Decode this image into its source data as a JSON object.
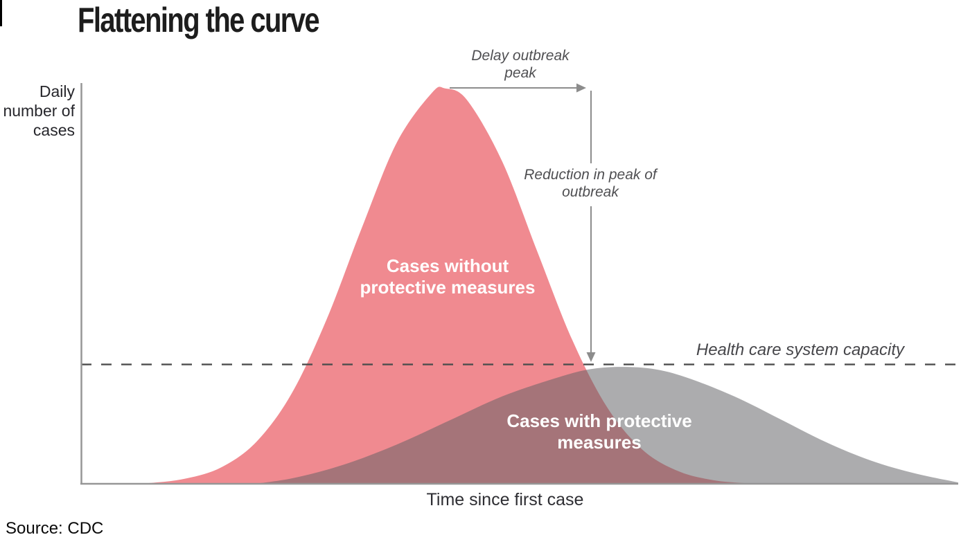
{
  "title": "Flattening the curve",
  "source": "Source: CDC",
  "axes": {
    "y_label": "Daily\nnumber of\ncases",
    "x_label": "Time since first case"
  },
  "annotations": {
    "delay": "Delay outbreak\npeak",
    "reduction": "Reduction in peak of\noutbreak",
    "capacity": "Health care system capacity"
  },
  "curve_labels": {
    "without": "Cases without\nprotective measures",
    "with": "Cases with protective\nmeasures"
  },
  "colors": {
    "pink_area": "#f08a90",
    "gray_area_overlay": "rgba(95,95,99,0.52)",
    "overlap_rendered": "#a07377",
    "dashed_line": "#4d4d4d",
    "axis_line": "#969696",
    "arrow": "#8c8c8c",
    "title_text": "#1d1d1d",
    "annotation_text": "#4f4f52",
    "area_label_text": "#ffffff"
  },
  "chart_data": {
    "type": "area",
    "title": "Flattening the curve",
    "xlabel": "Time since first case",
    "ylabel": "Daily number of cases",
    "grid": false,
    "axis_ticks": "none (conceptual chart, values in % of axis range)",
    "capacity_line": {
      "label": "Health care system capacity",
      "y_pct": 30,
      "style": "dashed"
    },
    "series": [
      {
        "name": "Cases without protective measures",
        "color": "#f08a90",
        "peak": {
          "x_pct": 41.5,
          "y_pct": 99
        },
        "points": [
          [
            0,
            0
          ],
          [
            4,
            0.1
          ],
          [
            8,
            0.4
          ],
          [
            12,
            1.5
          ],
          [
            16,
            4.3
          ],
          [
            20,
            10.7
          ],
          [
            24,
            22.7
          ],
          [
            28,
            41.3
          ],
          [
            32,
            64.1
          ],
          [
            36,
            85.5
          ],
          [
            40,
            97.9
          ],
          [
            41.5,
            99
          ],
          [
            44,
            96.1
          ],
          [
            48,
            80.8
          ],
          [
            52,
            58.3
          ],
          [
            56,
            36.1
          ],
          [
            60,
            19.2
          ],
          [
            64,
            8.7
          ],
          [
            68,
            3.4
          ],
          [
            72,
            1.1
          ],
          [
            76,
            0.3
          ],
          [
            80,
            0
          ]
        ]
      },
      {
        "name": "Cases with protective measures",
        "color": "rgba(95,95,99,0.52)",
        "peak": {
          "x_pct": 61,
          "y_pct": 29.5
        },
        "points": [
          [
            19,
            0
          ],
          [
            24,
            1.5
          ],
          [
            30,
            5
          ],
          [
            36,
            10
          ],
          [
            42,
            16
          ],
          [
            48,
            22
          ],
          [
            54,
            26.5
          ],
          [
            58,
            28.8
          ],
          [
            62,
            29.4
          ],
          [
            66,
            28.6
          ],
          [
            70,
            26
          ],
          [
            75,
            21.5
          ],
          [
            80,
            16
          ],
          [
            85,
            10.5
          ],
          [
            90,
            6
          ],
          [
            95,
            2.8
          ],
          [
            100,
            0.5
          ]
        ]
      }
    ],
    "annotations": [
      {
        "text": "Delay outbreak peak",
        "type": "arrow",
        "direction": "right",
        "from": "peak of red curve"
      },
      {
        "text": "Reduction in peak of outbreak",
        "type": "arrow",
        "direction": "down",
        "to": "capacity line"
      },
      {
        "text": "Health care system capacity",
        "type": "dashed-line-label",
        "y_pct": 30
      }
    ]
  }
}
